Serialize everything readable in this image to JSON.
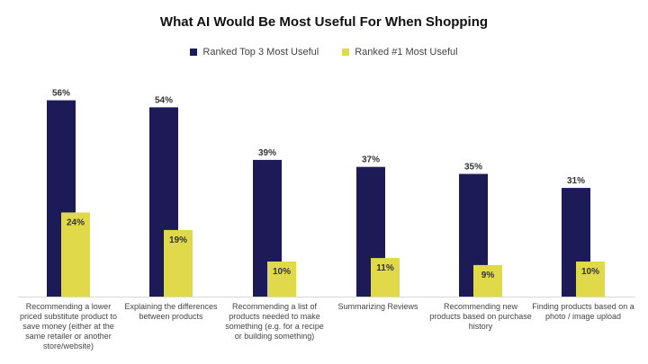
{
  "chart_data": {
    "type": "bar",
    "title": "What AI Would Be Most Useful For When Shopping",
    "xlabel": "",
    "ylabel": "",
    "ylim": [
      0,
      60
    ],
    "grid": false,
    "legend_position": "top-center",
    "categories": [
      "Recommending a lower priced substitute product to save money (either at the same retailer or another store/website)",
      "Explaining the differences between products",
      "Recommending a list of products needed to make something (e.g. for a recipe or building something)",
      "Summarizing Reviews",
      "Recommending new products based on purchase history",
      "Finding products based on a photo / image upload"
    ],
    "series": [
      {
        "name": "Ranked Top 3 Most Useful",
        "color": "#1c1b57",
        "values": [
          56,
          54,
          39,
          37,
          35,
          31
        ],
        "labels": [
          "56%",
          "54%",
          "39%",
          "37%",
          "35%",
          "31%"
        ]
      },
      {
        "name": "Ranked #1 Most Useful",
        "color": "#e0da4a",
        "values": [
          24,
          19,
          10,
          11,
          9,
          10
        ],
        "labels": [
          "24%",
          "19%",
          "10%",
          "11%",
          "9%",
          "10%"
        ]
      }
    ]
  }
}
